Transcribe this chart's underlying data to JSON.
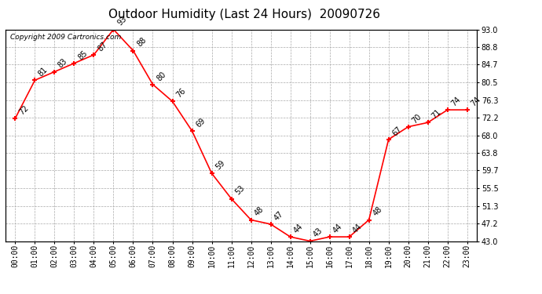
{
  "title": "Outdoor Humidity (Last 24 Hours)  20090726",
  "copyright": "Copyright 2009 Cartronics.com",
  "hours": [
    0,
    1,
    2,
    3,
    4,
    5,
    6,
    7,
    8,
    9,
    10,
    11,
    12,
    13,
    14,
    15,
    16,
    17,
    18,
    19,
    20,
    21,
    22,
    23
  ],
  "values": [
    72,
    81,
    83,
    85,
    87,
    93,
    88,
    80,
    76,
    69,
    59,
    53,
    48,
    47,
    44,
    43,
    44,
    44,
    48,
    67,
    70,
    71,
    74,
    74
  ],
  "yticks": [
    43.0,
    47.2,
    51.3,
    55.5,
    59.7,
    63.8,
    68.0,
    72.2,
    76.3,
    80.5,
    84.7,
    88.8,
    93.0
  ],
  "ylim": [
    43.0,
    93.0
  ],
  "line_color": "red",
  "marker_color": "red",
  "bg_color": "white",
  "grid_color": "#aaaaaa",
  "title_fontsize": 11,
  "tick_fontsize": 7,
  "annotation_fontsize": 7,
  "copyright_fontsize": 6.5
}
